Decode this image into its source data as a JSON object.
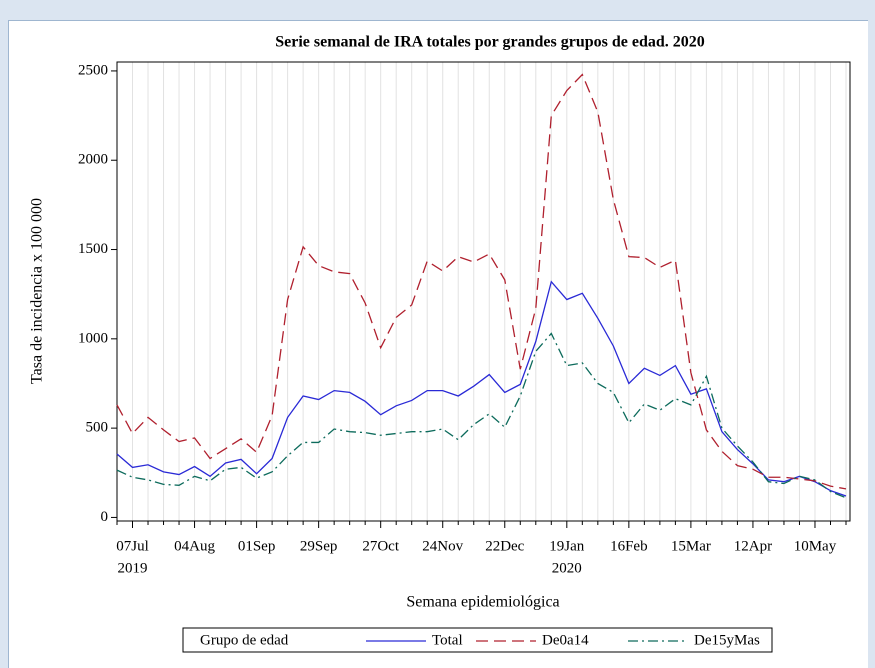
{
  "chart_data": {
    "type": "line",
    "title": "Serie semanal de IRA totales por grandes grupos de edad. 2020",
    "x_label": "Semana epidemiológica",
    "y_label": "Tasa de incidencia x 100 000",
    "legend_title": "Grupo de edad",
    "categories": [
      null,
      "07Jul",
      null,
      null,
      null,
      "04Aug",
      null,
      null,
      null,
      "01Sep",
      null,
      null,
      null,
      "29Sep",
      null,
      null,
      null,
      "27Oct",
      null,
      null,
      null,
      "24Nov",
      null,
      null,
      null,
      "22Dec",
      null,
      null,
      null,
      "19Jan",
      null,
      null,
      null,
      "16Feb",
      null,
      null,
      null,
      "15Mar",
      null,
      null,
      null,
      "12Apr",
      null,
      null,
      null,
      "10May",
      null,
      null
    ],
    "category_years": [
      null,
      "2019",
      null,
      null,
      null,
      null,
      null,
      null,
      null,
      null,
      null,
      null,
      null,
      null,
      null,
      null,
      null,
      null,
      null,
      null,
      null,
      null,
      null,
      null,
      null,
      null,
      null,
      null,
      null,
      "2020",
      null,
      null,
      null,
      null,
      null,
      null,
      null,
      null,
      null,
      null,
      null,
      null,
      null,
      null,
      null,
      null,
      null,
      null
    ],
    "series": [
      {
        "name": "Total",
        "color": "#2a2ad6",
        "dash": "none",
        "values": [
          355,
          280,
          295,
          255,
          240,
          285,
          230,
          305,
          325,
          245,
          330,
          560,
          680,
          660,
          710,
          700,
          650,
          575,
          625,
          655,
          710,
          710,
          680,
          735,
          800,
          700,
          745,
          985,
          1320,
          1220,
          1255,
          1115,
          960,
          750,
          835,
          795,
          850,
          690,
          720,
          480,
          380,
          300,
          210,
          200,
          230,
          200,
          150,
          120
        ]
      },
      {
        "name": "De0a14",
        "color": "#b0202e",
        "dash": "12 6",
        "values": [
          630,
          470,
          560,
          490,
          425,
          445,
          330,
          385,
          440,
          365,
          570,
          1220,
          1515,
          1410,
          1375,
          1365,
          1200,
          950,
          1120,
          1190,
          1435,
          1380,
          1460,
          1430,
          1475,
          1330,
          830,
          1170,
          2250,
          2390,
          2480,
          2270,
          1780,
          1460,
          1455,
          1400,
          1440,
          810,
          490,
          370,
          290,
          270,
          225,
          225,
          215,
          205,
          175,
          160
        ]
      },
      {
        "name": "De15yMas",
        "color": "#0d6b5c",
        "dash": "10 4 2 4",
        "values": [
          265,
          225,
          210,
          185,
          180,
          230,
          205,
          270,
          280,
          220,
          255,
          345,
          420,
          420,
          495,
          480,
          475,
          460,
          470,
          480,
          480,
          495,
          435,
          520,
          580,
          505,
          680,
          930,
          1030,
          850,
          865,
          750,
          700,
          530,
          635,
          600,
          665,
          630,
          790,
          500,
          400,
          310,
          200,
          190,
          230,
          210,
          145,
          110
        ]
      }
    ],
    "ylim": [
      -20,
      2550
    ],
    "yticks": [
      0,
      500,
      1000,
      1500,
      2000,
      2500
    ],
    "grid": true
  }
}
